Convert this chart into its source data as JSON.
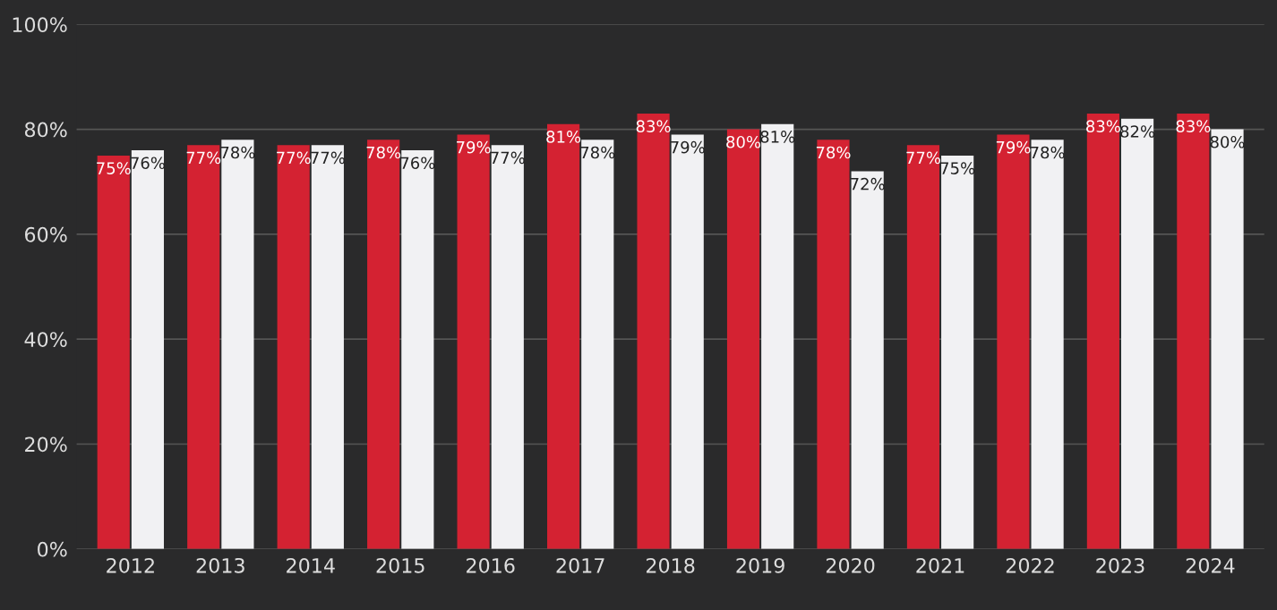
{
  "chart_data": {
    "type": "bar",
    "categories": [
      "2012",
      "2013",
      "2014",
      "2015",
      "2016",
      "2017",
      "2018",
      "2019",
      "2020",
      "2021",
      "2022",
      "2023",
      "2024"
    ],
    "series": [
      {
        "color": "#d42232",
        "values": [
          75,
          77,
          77,
          78,
          79,
          81,
          83,
          80,
          78,
          77,
          79,
          83,
          83
        ],
        "value_labels": [
          "75%",
          "77%",
          "77%",
          "78%",
          "79%",
          "81%",
          "83%",
          "80%",
          "78%",
          "77%",
          "79%",
          "83%",
          "83%"
        ]
      },
      {
        "color": "#f1f1f3",
        "values": [
          76,
          78,
          77,
          76,
          77,
          78,
          79,
          81,
          72,
          75,
          78,
          82,
          80
        ],
        "value_labels": [
          "76%",
          "78%",
          "77%",
          "76%",
          "77%",
          "78%",
          "79%",
          "81%",
          "72%",
          "75%",
          "78%",
          "82%",
          "80%"
        ]
      }
    ],
    "ylim": [
      0,
      100
    ],
    "yticks": [
      {
        "value": 0,
        "label": "0%"
      },
      {
        "value": 20,
        "label": "20%"
      },
      {
        "value": 40,
        "label": "40%"
      },
      {
        "value": 60,
        "label": "60%"
      },
      {
        "value": 80,
        "label": "80%"
      },
      {
        "value": 100,
        "label": "100%"
      }
    ],
    "grid": "y",
    "legend": false
  }
}
